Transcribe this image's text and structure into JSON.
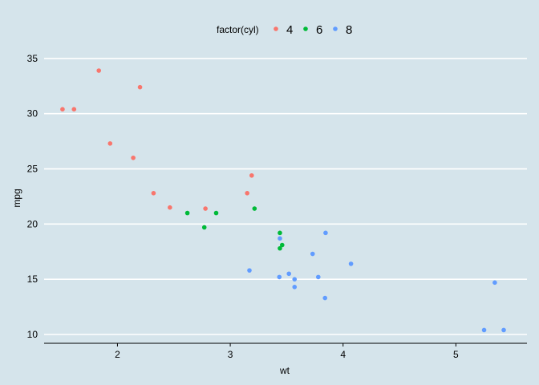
{
  "chart_data": {
    "type": "scatter",
    "xlabel": "wt",
    "ylabel": "mpg",
    "xlim": [
      1.35,
      5.63
    ],
    "ylim": [
      9.2,
      36.3
    ],
    "x_ticks": [
      2,
      3,
      4,
      5
    ],
    "y_ticks": [
      10,
      15,
      20,
      25,
      30,
      35
    ],
    "grid": "horizontal major lines",
    "legend": {
      "title": "factor(cyl)",
      "position": "top"
    },
    "colors": {
      "background": "#d5e4eb",
      "gridline": "#ffffff",
      "axis_line": "#000000"
    },
    "series": [
      {
        "name": "4",
        "color": "#f8766d",
        "points": [
          [
            1.513,
            30.4
          ],
          [
            1.615,
            30.4
          ],
          [
            1.835,
            33.9
          ],
          [
            1.935,
            27.3
          ],
          [
            2.14,
            26.0
          ],
          [
            2.2,
            32.4
          ],
          [
            2.32,
            22.8
          ],
          [
            2.465,
            21.5
          ],
          [
            2.78,
            21.4
          ],
          [
            3.15,
            22.8
          ],
          [
            3.19,
            24.4
          ]
        ]
      },
      {
        "name": "6",
        "color": "#00ba38",
        "points": [
          [
            2.62,
            21.0
          ],
          [
            2.77,
            19.7
          ],
          [
            2.875,
            21.0
          ],
          [
            3.215,
            21.4
          ],
          [
            3.44,
            17.8
          ],
          [
            3.44,
            19.2
          ],
          [
            3.46,
            18.1
          ]
        ]
      },
      {
        "name": "8",
        "color": "#619cff",
        "points": [
          [
            3.17,
            15.8
          ],
          [
            3.435,
            15.2
          ],
          [
            3.44,
            18.7
          ],
          [
            3.52,
            15.5
          ],
          [
            3.57,
            14.3
          ],
          [
            3.57,
            15.0
          ],
          [
            3.73,
            17.3
          ],
          [
            3.78,
            15.2
          ],
          [
            3.84,
            13.3
          ],
          [
            3.845,
            19.2
          ],
          [
            4.07,
            16.4
          ],
          [
            5.25,
            10.4
          ],
          [
            5.345,
            14.7
          ],
          [
            5.424,
            10.4
          ]
        ]
      }
    ]
  }
}
